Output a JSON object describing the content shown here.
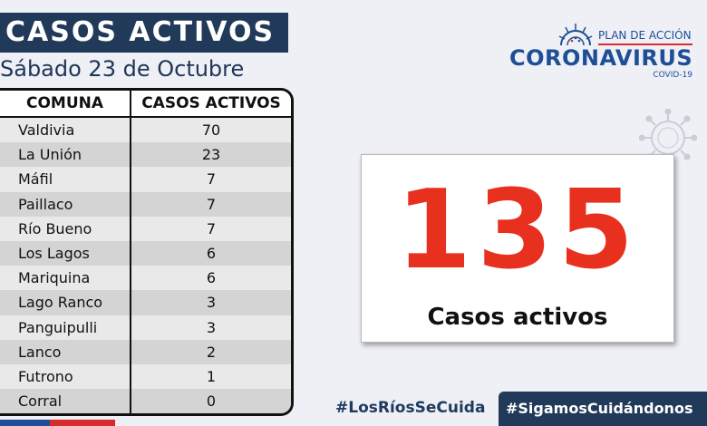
{
  "header": {
    "title": "CASOS ACTIVOS",
    "date": "Sábado 23 de Octubre"
  },
  "table": {
    "headers": [
      "COMUNA",
      "CASOS ACTIVOS"
    ],
    "rows": [
      [
        "Valdivia",
        "70"
      ],
      [
        "La Unión",
        "23"
      ],
      [
        "Máfil",
        "7"
      ],
      [
        "Paillaco",
        "7"
      ],
      [
        "Río Bueno",
        "7"
      ],
      [
        "Los Lagos",
        "6"
      ],
      [
        "Mariquina",
        "6"
      ],
      [
        "Lago Ranco",
        "3"
      ],
      [
        "Panguipulli",
        "3"
      ],
      [
        "Lanco",
        "2"
      ],
      [
        "Futrono",
        "1"
      ],
      [
        "Corral",
        "0"
      ]
    ]
  },
  "logo": {
    "plan": "PLAN DE ACCIÓN",
    "name": "CORONAVIRUS",
    "sub": "COVID-19",
    "icon": "virus-icon"
  },
  "summary": {
    "total": "135",
    "label": "Casos activos"
  },
  "hashtags": {
    "first": "#LosRíosSeCuida",
    "second": "#SigamosCuidándonos"
  },
  "colors": {
    "navy": "#213a5a",
    "accent_red": "#e8301e",
    "brand_blue": "#1d4e96"
  }
}
